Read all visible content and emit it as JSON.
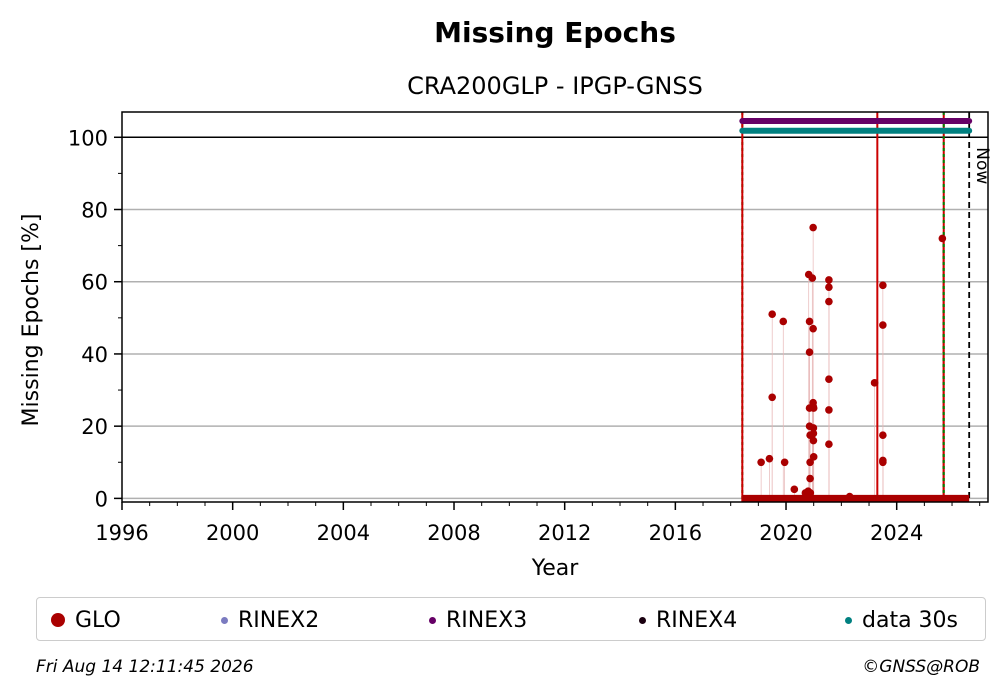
{
  "chart_data": {
    "type": "scatter",
    "title": "Missing Epochs",
    "subtitle": "CRA200GLP - IPGP-GNSS",
    "xlabel": "Year",
    "ylabel": "Missing Epochs [%]",
    "xlim": [
      1996,
      2027.3
    ],
    "ylim": [
      -1,
      107
    ],
    "xticks": [
      1996,
      2000,
      2004,
      2008,
      2012,
      2016,
      2020,
      2024
    ],
    "yticks": [
      0,
      20,
      40,
      60,
      80,
      100
    ],
    "grid": true,
    "reference_line_y": 100,
    "now_label": "Now",
    "now_x": 2026.62,
    "vertical_lines": [
      {
        "x": 2018.42,
        "color": "#008000",
        "style": "dotted"
      },
      {
        "x": 2018.42,
        "color": "#cc0000",
        "style": "solid"
      },
      {
        "x": 2023.3,
        "color": "#cc0000",
        "style": "solid"
      },
      {
        "x": 2025.7,
        "color": "#cc0000",
        "style": "solid"
      },
      {
        "x": 2025.7,
        "color": "#008000",
        "style": "dotted"
      }
    ],
    "bars": [
      {
        "name": "RINEX3",
        "y": 104.5,
        "x_start": 2018.42,
        "x_end": 2026.62,
        "color": "#660066"
      },
      {
        "name": "data 30s",
        "y": 101.8,
        "x_start": 2018.42,
        "x_end": 2026.62,
        "color": "#008080"
      }
    ],
    "baseline": {
      "x_start": 2018.42,
      "x_end": 2026.62,
      "y": 0,
      "color": "#aa0000"
    },
    "series": [
      {
        "name": "GLO",
        "color": "#aa0000",
        "points": [
          [
            2019.1,
            10
          ],
          [
            2019.4,
            11
          ],
          [
            2019.5,
            51
          ],
          [
            2019.5,
            28
          ],
          [
            2019.9,
            49
          ],
          [
            2019.95,
            10
          ],
          [
            2020.3,
            2.5
          ],
          [
            2020.7,
            1.5
          ],
          [
            2020.8,
            2
          ],
          [
            2020.82,
            62
          ],
          [
            2020.85,
            49
          ],
          [
            2020.85,
            40.5
          ],
          [
            2020.85,
            25
          ],
          [
            2020.85,
            20
          ],
          [
            2020.87,
            17.5
          ],
          [
            2020.87,
            10
          ],
          [
            2020.87,
            5.5
          ],
          [
            2020.88,
            1.5
          ],
          [
            2020.95,
            61
          ],
          [
            2020.98,
            75
          ],
          [
            2020.98,
            47
          ],
          [
            2020.98,
            26.5
          ],
          [
            2020.98,
            25.5
          ],
          [
            2020.99,
            19.5
          ],
          [
            2020.99,
            18
          ],
          [
            2020.99,
            16
          ],
          [
            2021.0,
            11.5
          ],
          [
            2021.0,
            25
          ],
          [
            2021.55,
            60.5
          ],
          [
            2021.55,
            58.5
          ],
          [
            2021.55,
            54.5
          ],
          [
            2021.55,
            33
          ],
          [
            2021.55,
            24.5
          ],
          [
            2021.55,
            15
          ],
          [
            2022.3,
            0.5
          ],
          [
            2023.2,
            32
          ],
          [
            2023.5,
            59
          ],
          [
            2023.5,
            48
          ],
          [
            2023.5,
            17.5
          ],
          [
            2023.5,
            10.5
          ],
          [
            2023.5,
            10
          ],
          [
            2025.65,
            72
          ]
        ]
      }
    ]
  },
  "legend": [
    {
      "label": "GLO",
      "color": "#aa0000",
      "dot": 14
    },
    {
      "label": "RINEX2",
      "color": "#7b7bc0",
      "dot": 7
    },
    {
      "label": "RINEX3",
      "color": "#660066",
      "dot": 7
    },
    {
      "label": "RINEX4",
      "color": "#1a0010",
      "dot": 7
    },
    {
      "label": "data 30s",
      "color": "#008080",
      "dot": 7
    }
  ],
  "footer": {
    "timestamp": "Fri Aug 14 12:11:45 2026",
    "copyright": "©GNSS@ROB"
  }
}
